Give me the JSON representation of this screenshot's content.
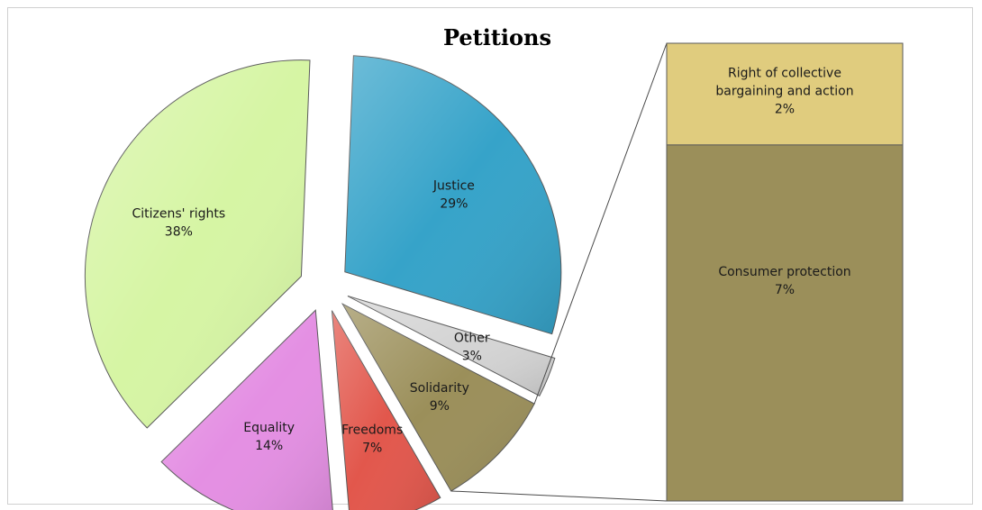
{
  "chart_data": {
    "type": "pie",
    "title": "Petitions",
    "slices": [
      {
        "name": "Justice",
        "value": 29,
        "label": "29%",
        "color": "#36a3c9"
      },
      {
        "name": "Other",
        "value": 3,
        "label": "3%",
        "color": "#d4d4d4"
      },
      {
        "name": "Solidarity",
        "value": 9,
        "label": "9%",
        "color": "#9b8f5a"
      },
      {
        "name": "Freedoms",
        "value": 7,
        "label": "7%",
        "color": "#e2574c"
      },
      {
        "name": "Equality",
        "value": 14,
        "label": "14%",
        "color": "#e48fe3"
      },
      {
        "name": "Citizens' rights",
        "value": 38,
        "label": "38%",
        "color": "#d6f5a4"
      }
    ],
    "breakdown_of": "Solidarity",
    "breakdown": [
      {
        "name_lines": [
          "Right of collective",
          "bargaining and action"
        ],
        "value": 2,
        "label": "2%",
        "color": "#e0cc7e"
      },
      {
        "name_lines": [
          "Consumer protection"
        ],
        "value": 7,
        "label": "7%",
        "color": "#9b8f5a"
      }
    ]
  }
}
